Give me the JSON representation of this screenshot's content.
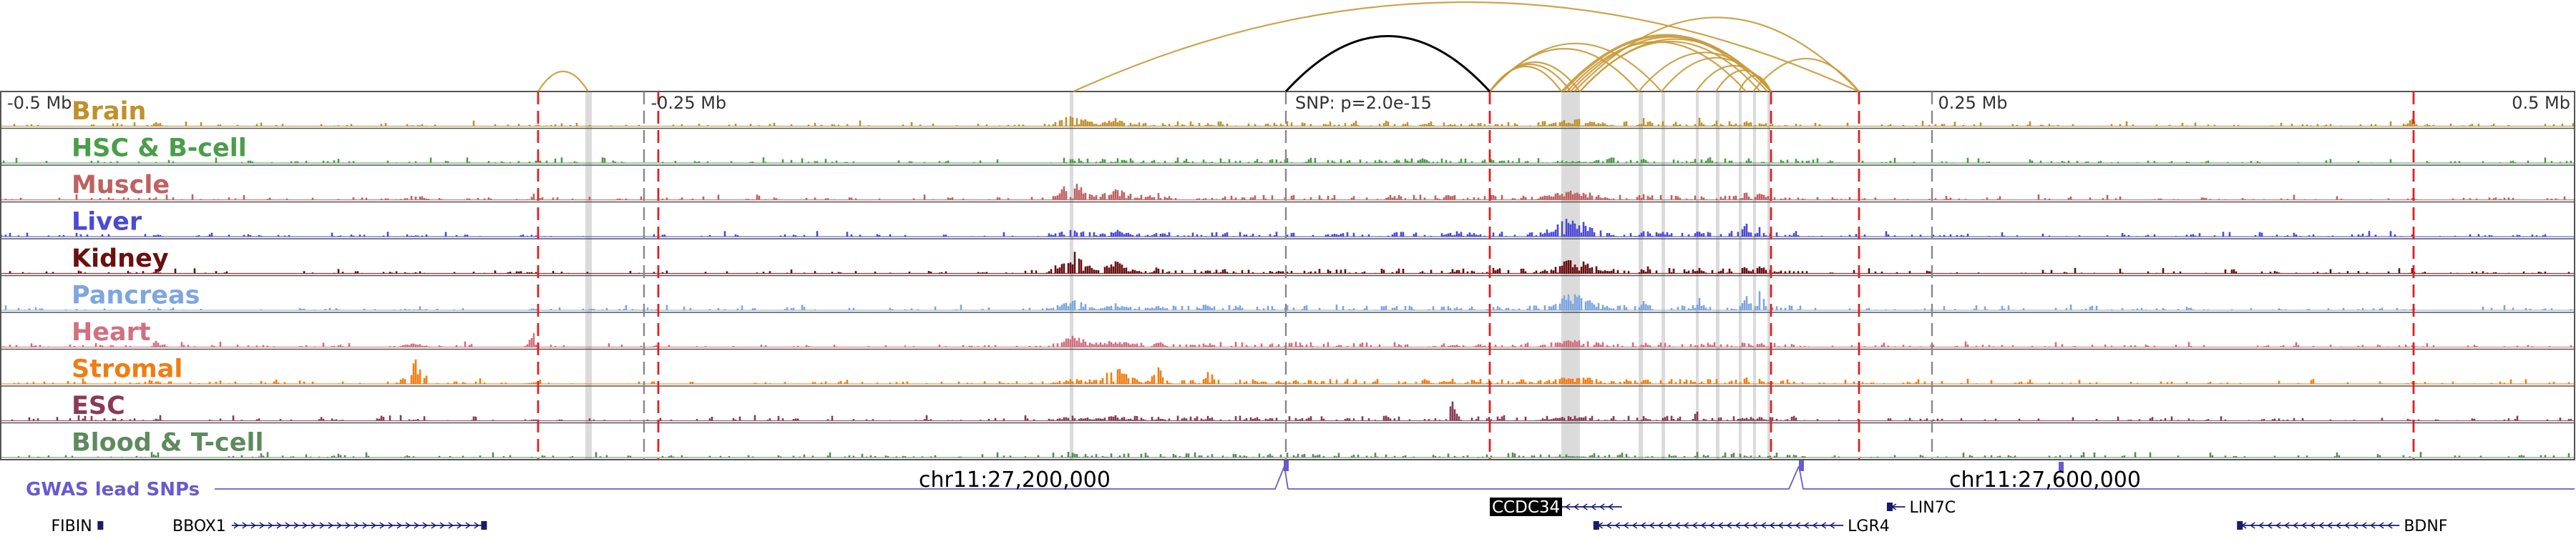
{
  "scale": {
    "labels": [
      {
        "text": "-0.5 Mb",
        "pos": -0.5,
        "anchor": "start"
      },
      {
        "text": "-0.25 Mb",
        "pos": -0.25,
        "anchor": "start"
      },
      {
        "text": "0.25 Mb",
        "pos": 0.25,
        "anchor": "start"
      },
      {
        "text": "0.5 Mb",
        "pos": 0.5,
        "anchor": "end"
      }
    ],
    "snp_label": "SNP: p=2.0e-15"
  },
  "tracks": [
    {
      "name": "Brain",
      "color": "#c0902a"
    },
    {
      "name": "HSC & B-cell",
      "color": "#4a9e4a"
    },
    {
      "name": "Muscle",
      "color": "#c06060"
    },
    {
      "name": "Liver",
      "color": "#4a4ad6"
    },
    {
      "name": "Kidney",
      "color": "#6b0f0f"
    },
    {
      "name": "Pancreas",
      "color": "#7ea6e0"
    },
    {
      "name": "Heart",
      "color": "#d07080"
    },
    {
      "name": "Stromal",
      "color": "#f07d12"
    },
    {
      "name": "ESC",
      "color": "#8a3a55"
    },
    {
      "name": "Blood & T-cell",
      "color": "#5e8a5e"
    }
  ],
  "gwas": {
    "label": "GWAS lead SNPs",
    "color": "#6a5acd"
  },
  "coords": [
    {
      "text": "chr11:27,200,000"
    },
    {
      "text": "chr11:27,600,000"
    }
  ],
  "genes": [
    {
      "name": "FIBIN",
      "start": -0.462,
      "end": -0.461,
      "strand": "+",
      "label_side": "left"
    },
    {
      "name": "BBOX1",
      "start": -0.41,
      "end": -0.312,
      "strand": "+",
      "label_side": "left"
    },
    {
      "name": "CCDC34",
      "start": 0.104,
      "end": 0.13,
      "strand": "-",
      "label_side": "right",
      "highlight": true
    },
    {
      "name": "LGR4",
      "start": 0.12,
      "end": 0.216,
      "strand": "-",
      "label_side": "right"
    },
    {
      "name": "LIN7C",
      "start": 0.234,
      "end": 0.24,
      "strand": "-",
      "label_side": "right"
    },
    {
      "name": "BDNF",
      "start": 0.37,
      "end": 0.432,
      "strand": "-",
      "label_side": "right"
    }
  ],
  "colors": {
    "red_dashed": "#e02020",
    "grey_dashed": "#888888",
    "arc_gold": "#c89a3a",
    "arc_black": "#000000",
    "highlight_band": "#cfcfcf",
    "baseline": "#333333"
  }
}
